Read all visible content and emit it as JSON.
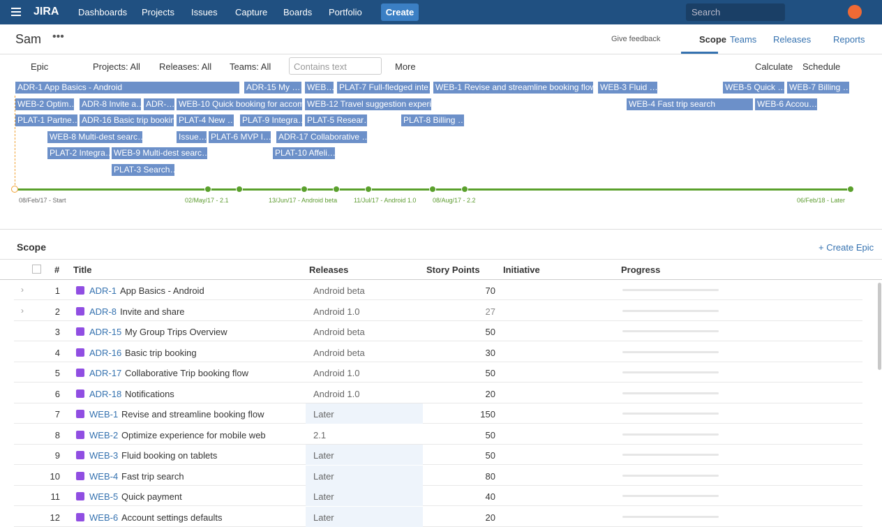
{
  "nav": {
    "logo": "JIRA",
    "items": [
      "Dashboards",
      "Projects",
      "Issues",
      "Capture",
      "Boards",
      "Portfolio"
    ],
    "create": "Create",
    "search": "Search"
  },
  "header": {
    "title": "Sam",
    "feedback": "Give feedback",
    "tabs": [
      "Scope",
      "Teams",
      "Releases",
      "Reports"
    ]
  },
  "toolbar": {
    "epic": "Epic",
    "filters": [
      "Projects: All",
      "Releases: All",
      "Teams: All"
    ],
    "text_filter": "Contains text",
    "more": "More",
    "calculate": "Calculate",
    "schedule": "Schedule"
  },
  "timeline": {
    "rows": [
      [
        "ADR-1 App Basics - Android",
        "ADR-15 My …",
        "WEB…",
        "PLAT-7 Full-fledged inte…",
        "WEB-1 Revise and streamline booking flow",
        "WEB-3 Fluid …",
        "WEB-5 Quick …",
        "WEB-7 Billing …"
      ],
      [
        "WEB-2 Optim…",
        "ADR-8 Invite a…",
        "ADR-…",
        "WEB-10 Quick booking for accom…",
        "WEB-12 Travel suggestion experi…",
        "WEB-4 Fast trip search",
        "WEB-6 Accou…"
      ],
      [
        "PLAT-1 Partne…",
        "ADR-16 Basic trip booking",
        "PLAT-4 New …",
        "PLAT-9 Integra…",
        "PLAT-5 Resear…",
        "PLAT-8 Billing …"
      ],
      [
        "WEB-8 Multi-dest searc…",
        "Issue…",
        "PLAT-6 MVP I…",
        "ADR-17 Collaborative …"
      ],
      [
        "PLAT-2 Integra…",
        "WEB-9 Multi-dest searc…",
        "PLAT-10 Affeli…"
      ],
      [
        "PLAT-3 Search…"
      ]
    ],
    "milestones": [
      "08/Feb/17 - Start",
      "02/May/17 - 2.1",
      "13/Jun/17 - Android beta",
      "11/Jul/17 - Android 1.0",
      "08/Aug/17 - 2.2",
      "06/Feb/18 - Later"
    ]
  },
  "scope": {
    "title": "Scope",
    "create": "+ Create Epic",
    "columns": [
      "#",
      "Title",
      "Releases",
      "Story Points",
      "Initiative",
      "Progress"
    ],
    "rows": [
      [
        1,
        "ADR-1",
        "App Basics - Android",
        "Android beta",
        70
      ],
      [
        2,
        "ADR-8",
        "Invite and share",
        "Android 1.0",
        27
      ],
      [
        3,
        "ADR-15",
        "My Group Trips Overview",
        "Android beta",
        50
      ],
      [
        4,
        "ADR-16",
        "Basic trip booking",
        "Android beta",
        30
      ],
      [
        5,
        "ADR-17",
        "Collaborative Trip booking flow",
        "Android 1.0",
        50
      ],
      [
        6,
        "ADR-18",
        "Notifications",
        "Android 1.0",
        20
      ],
      [
        7,
        "WEB-1",
        "Revise and streamline booking flow",
        "Later",
        150
      ],
      [
        8,
        "WEB-2",
        "Optimize experience for mobile web",
        "2.1",
        50
      ],
      [
        9,
        "WEB-3",
        "Fluid booking on tablets",
        "Later",
        50
      ],
      [
        10,
        "WEB-4",
        "Fast trip search",
        "Later",
        80
      ],
      [
        11,
        "WEB-5",
        "Quick payment",
        "Later",
        40
      ],
      [
        12,
        "WEB-6",
        "Account settings defaults",
        "Later",
        20
      ]
    ]
  }
}
